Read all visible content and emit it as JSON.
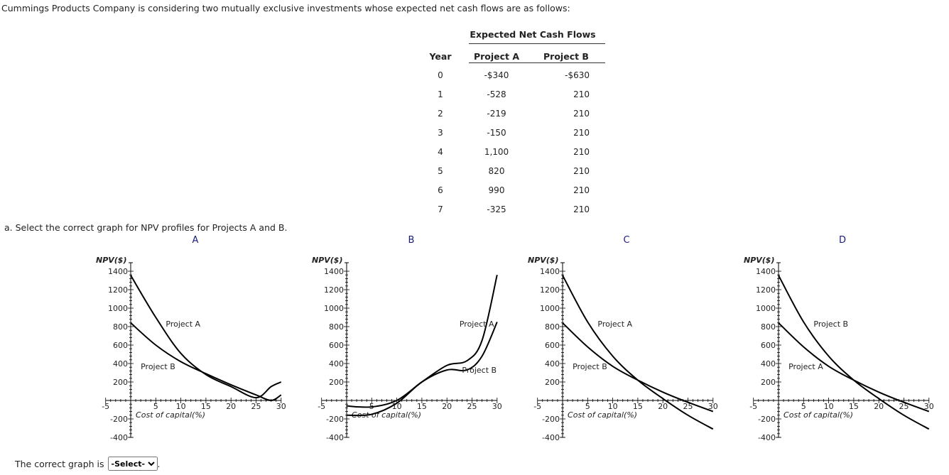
{
  "intro": "Cummings Products Company is considering two mutually exclusive investments whose expected net cash flows are as follows:",
  "table": {
    "title": "Expected Net Cash Flows",
    "headers": [
      "Year",
      "Project A",
      "Project B"
    ],
    "rows": [
      [
        "0",
        "-$340",
        "-$630"
      ],
      [
        "1",
        "-528",
        "210"
      ],
      [
        "2",
        "-219",
        "210"
      ],
      [
        "3",
        "-150",
        "210"
      ],
      [
        "4",
        "1,100",
        "210"
      ],
      [
        "5",
        "820",
        "210"
      ],
      [
        "6",
        "990",
        "210"
      ],
      [
        "7",
        "-325",
        "210"
      ]
    ]
  },
  "question": "a. Select the correct graph for NPV profiles for Projects A and B.",
  "answer": {
    "label": "The correct graph is",
    "selected": "-Select-"
  },
  "chart_data": [
    {
      "type": "line",
      "title": "A",
      "xlabel": "Cost of capital(%)",
      "ylabel": "NPV($)",
      "xlim": [
        -5,
        30
      ],
      "ylim": [
        -400,
        1400
      ],
      "xticks": [
        -5,
        5,
        10,
        15,
        20,
        25,
        30
      ],
      "yticks": [
        1400,
        1200,
        1000,
        800,
        600,
        400,
        200,
        -200,
        -400
      ],
      "series": [
        {
          "name": "Project A",
          "label_at": [
            7,
            800
          ],
          "x": [
            0,
            5,
            10,
            15,
            20,
            25,
            28,
            30
          ],
          "y": [
            1355,
            900,
            510,
            280,
            150,
            30,
            150,
            200
          ]
        },
        {
          "name": "Project B",
          "label_at": [
            2,
            340
          ],
          "x": [
            0,
            5,
            10,
            15,
            20,
            25,
            28,
            30
          ],
          "y": [
            840,
            600,
            420,
            290,
            170,
            60,
            0,
            60
          ]
        }
      ]
    },
    {
      "type": "line",
      "title": "B",
      "xlabel": "Cost of capital(%)",
      "ylabel": "NPV($)",
      "xlim": [
        -5,
        30
      ],
      "ylim": [
        -400,
        1400
      ],
      "xticks": [
        -5,
        5,
        10,
        15,
        20,
        25,
        30
      ],
      "yticks": [
        1400,
        1200,
        1000,
        800,
        600,
        400,
        200,
        -200,
        -400
      ],
      "series": [
        {
          "name": "Project A",
          "label_at": [
            22.5,
            800
          ],
          "x": [
            0,
            5,
            10,
            15,
            20,
            24,
            27,
            30
          ],
          "y": [
            -60,
            -70,
            0,
            200,
            380,
            430,
            650,
            1360
          ]
        },
        {
          "name": "Project B",
          "label_at": [
            23,
            300
          ],
          "x": [
            0,
            5,
            10,
            15,
            20,
            24,
            27,
            30
          ],
          "y": [
            -160,
            -150,
            -30,
            200,
            330,
            330,
            480,
            850
          ]
        }
      ]
    },
    {
      "type": "line",
      "title": "C",
      "xlabel": "Cost of capital(%)",
      "ylabel": "NPV($)",
      "xlim": [
        -5,
        30
      ],
      "ylim": [
        -400,
        1400
      ],
      "xticks": [
        -5,
        5,
        10,
        15,
        20,
        25,
        30
      ],
      "yticks": [
        1400,
        1200,
        1000,
        800,
        600,
        400,
        200,
        -200,
        -400
      ],
      "series": [
        {
          "name": "Project A",
          "label_at": [
            7,
            800
          ],
          "x": [
            0,
            5,
            10,
            15,
            20,
            25,
            30
          ],
          "y": [
            1355,
            850,
            480,
            220,
            20,
            -160,
            -310
          ]
        },
        {
          "name": "Project B",
          "label_at": [
            2,
            340
          ],
          "x": [
            0,
            5,
            10,
            15,
            20,
            25,
            30
          ],
          "y": [
            840,
            580,
            370,
            220,
            90,
            -20,
            -120
          ]
        }
      ]
    },
    {
      "type": "line",
      "title": "D",
      "xlabel": "Cost of capital(%)",
      "ylabel": "NPV($)",
      "xlim": [
        -5,
        30
      ],
      "ylim": [
        -400,
        1400
      ],
      "xticks": [
        -5,
        5,
        10,
        15,
        20,
        25,
        30
      ],
      "yticks": [
        1400,
        1200,
        1000,
        800,
        600,
        400,
        200,
        -200,
        -400
      ],
      "series": [
        {
          "name": "Project B",
          "label_at": [
            7,
            800
          ],
          "x": [
            0,
            5,
            10,
            15,
            20,
            25,
            30
          ],
          "y": [
            1355,
            850,
            480,
            220,
            20,
            -160,
            -310
          ]
        },
        {
          "name": "Project A",
          "label_at": [
            2,
            340
          ],
          "x": [
            0,
            5,
            10,
            15,
            20,
            25,
            30
          ],
          "y": [
            840,
            580,
            370,
            220,
            90,
            -20,
            -120
          ]
        }
      ]
    }
  ]
}
